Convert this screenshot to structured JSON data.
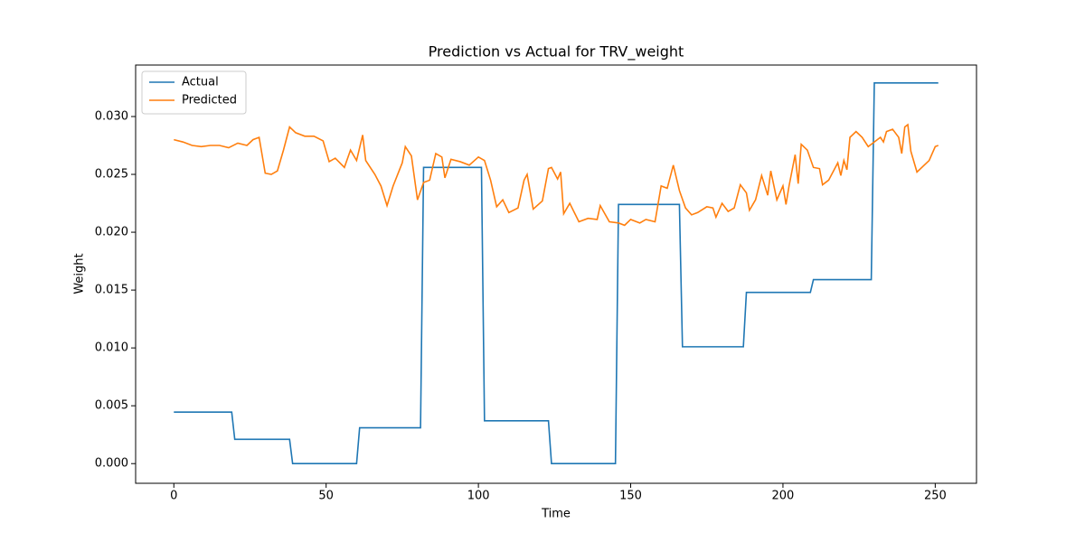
{
  "chart_data": {
    "type": "line",
    "title": "Prediction vs Actual for TRV_weight",
    "x_label": "Time",
    "y_label": "Weight",
    "series": [
      {
        "name": "Actual",
        "color": "#1f77b4",
        "x": [
          0,
          19,
          20,
          38,
          39,
          60,
          61,
          81,
          82,
          101,
          102,
          123,
          124,
          145,
          146,
          166,
          167,
          187,
          188,
          209,
          210,
          229,
          230,
          251
        ],
        "values": [
          0.00445,
          0.00445,
          0.0021,
          0.0021,
          0,
          0,
          0.0031,
          0.0031,
          0.0256,
          0.0256,
          0.0037,
          0.0037,
          0,
          0,
          0.0224,
          0.0224,
          0.0101,
          0.0101,
          0.0148,
          0.0148,
          0.0159,
          0.0159,
          0.0329,
          0.0329
        ]
      },
      {
        "name": "Predicted",
        "color": "#ff7f0e",
        "x": [
          0,
          3,
          6,
          9,
          12,
          15,
          18,
          21,
          24,
          26,
          28,
          30,
          32,
          34,
          36,
          38,
          40,
          43,
          46,
          49,
          51,
          53,
          56,
          58,
          60,
          62,
          63,
          66,
          68,
          70,
          72,
          75,
          76,
          78,
          80,
          82,
          84,
          86,
          88,
          89,
          91,
          94,
          97,
          100,
          102,
          104,
          106,
          108,
          110,
          113,
          115,
          116,
          118,
          121,
          123,
          124,
          126,
          127,
          128,
          130,
          133,
          136,
          139,
          140,
          143,
          146,
          148,
          150,
          153,
          155,
          158,
          160,
          162,
          164,
          166,
          168,
          170,
          172,
          175,
          177,
          178,
          180,
          182,
          184,
          186,
          188,
          189,
          191,
          193,
          195,
          196,
          198,
          200,
          201,
          202,
          204,
          205,
          206,
          208,
          210,
          212,
          213,
          215,
          218,
          219,
          220,
          221,
          222,
          224,
          226,
          228,
          229,
          232,
          233,
          234,
          236,
          238,
          239,
          240,
          241,
          242,
          244,
          246,
          248,
          250,
          251
        ],
        "values": [
          0.028,
          0.0278,
          0.0275,
          0.0274,
          0.0275,
          0.0275,
          0.0273,
          0.0277,
          0.0275,
          0.028,
          0.0282,
          0.0251,
          0.025,
          0.0253,
          0.0271,
          0.0291,
          0.0286,
          0.0283,
          0.0283,
          0.0279,
          0.0261,
          0.0264,
          0.0256,
          0.0271,
          0.0262,
          0.0284,
          0.0262,
          0.025,
          0.024,
          0.0223,
          0.024,
          0.026,
          0.0274,
          0.0266,
          0.0228,
          0.0243,
          0.0245,
          0.0268,
          0.0265,
          0.0247,
          0.0263,
          0.0261,
          0.0258,
          0.0265,
          0.0262,
          0.0245,
          0.0222,
          0.0228,
          0.0217,
          0.0221,
          0.0245,
          0.025,
          0.022,
          0.0227,
          0.0255,
          0.0256,
          0.0246,
          0.0252,
          0.0216,
          0.0225,
          0.0209,
          0.0212,
          0.0211,
          0.0223,
          0.0209,
          0.0208,
          0.0206,
          0.0211,
          0.0208,
          0.0211,
          0.0209,
          0.024,
          0.0238,
          0.0258,
          0.0236,
          0.0221,
          0.0215,
          0.0217,
          0.0222,
          0.0221,
          0.0213,
          0.0225,
          0.0218,
          0.0221,
          0.0241,
          0.0234,
          0.0219,
          0.0228,
          0.0249,
          0.0232,
          0.0253,
          0.0228,
          0.024,
          0.0224,
          0.024,
          0.0267,
          0.0242,
          0.0276,
          0.0271,
          0.0256,
          0.0255,
          0.0241,
          0.0245,
          0.026,
          0.0249,
          0.0262,
          0.0254,
          0.0282,
          0.0287,
          0.0282,
          0.0274,
          0.0276,
          0.0282,
          0.0278,
          0.0287,
          0.0289,
          0.0282,
          0.0268,
          0.0291,
          0.0293,
          0.027,
          0.0252,
          0.0257,
          0.0262,
          0.0274,
          0.0275
        ]
      }
    ],
    "xlim": [
      -12.55,
      263.55
    ],
    "ylim": [
      -0.0017,
      0.03445
    ],
    "xticks": [
      0,
      50,
      100,
      150,
      200,
      250
    ],
    "yticks": [
      {
        "value": 0,
        "label": "0.000"
      },
      {
        "value": 0.005,
        "label": "0.005"
      },
      {
        "value": 0.01,
        "label": "0.010"
      },
      {
        "value": 0.015,
        "label": "0.015"
      },
      {
        "value": 0.02,
        "label": "0.020"
      },
      {
        "value": 0.025,
        "label": "0.025"
      },
      {
        "value": 0.03,
        "label": "0.030"
      }
    ],
    "legend": "upper left"
  }
}
